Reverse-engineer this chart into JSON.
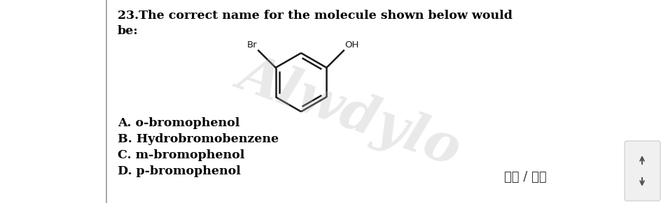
{
  "title_line1": "23.The correct name for the molecule shown below would",
  "title_line2": "be:",
  "options": [
    "A. o-bromophenol",
    "B. Hydrobromobenzene",
    "C. m-bromophenol",
    "D. p-bromophenol"
  ],
  "score": "١٠ / ١٥",
  "bg_color": "#ffffff",
  "text_color": "#000000",
  "molecule_color": "#1a1a1a",
  "watermark_color": "#b8b8b8",
  "title_fontsize": 12.5,
  "options_fontsize": 12.5,
  "score_fontsize": 13,
  "border_color": "#aaaaaa",
  "nav_bg": "#e0e0e0"
}
